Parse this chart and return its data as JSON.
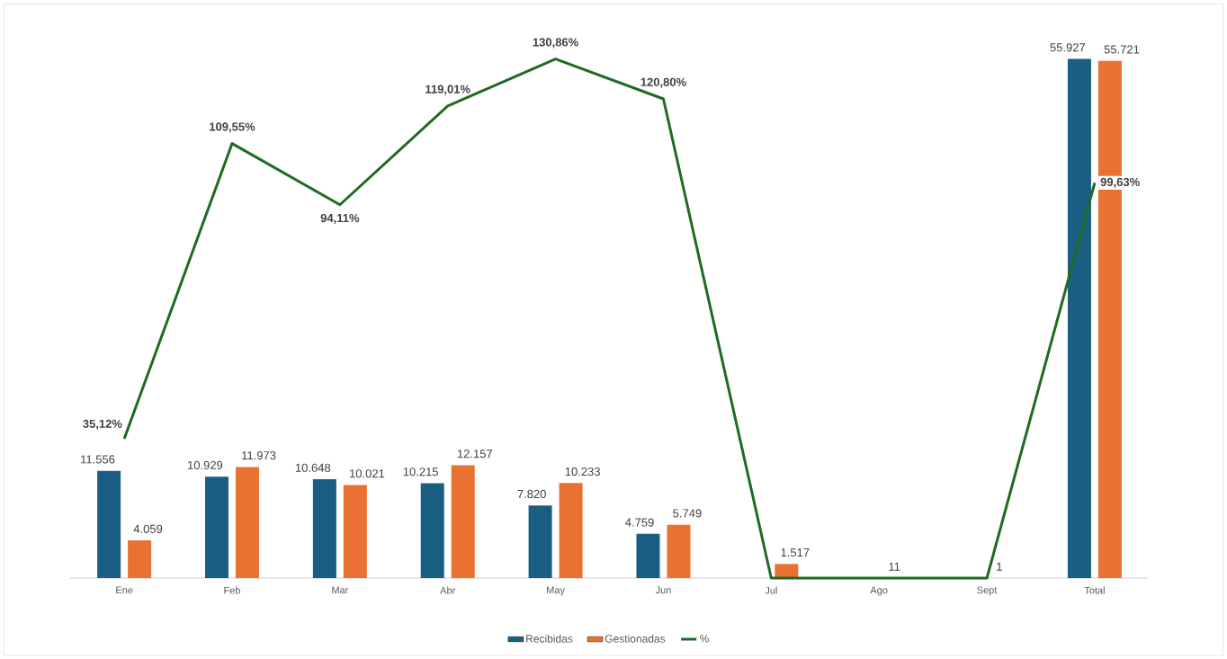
{
  "chart_data": {
    "type": "bar",
    "categories": [
      "Ene",
      "Feb",
      "Mar",
      "Abr",
      "May",
      "Jun",
      "Jul",
      "Ago",
      "Sept",
      "Total"
    ],
    "tick_labels": "x",
    "legend": "bottom",
    "series": [
      {
        "name": "Recibidas",
        "color": "#1b5e83",
        "values": [
          11556,
          10929,
          10648,
          10215,
          7820,
          4759,
          null,
          null,
          null,
          55927
        ],
        "value_labels": [
          "11.556",
          "10.929",
          "10.648",
          "10.215",
          "7.820",
          "4.759",
          null,
          null,
          null,
          "55.927"
        ]
      },
      {
        "name": "Gestionadas",
        "color": "#e97132",
        "values": [
          4059,
          11973,
          10021,
          12157,
          10233,
          5749,
          1517,
          11,
          1,
          55721
        ],
        "value_labels": [
          "4.059",
          "11.973",
          "10.021",
          "12.157",
          "10.233",
          "5.749",
          "1.517",
          "11",
          "1",
          "55.721"
        ]
      },
      {
        "name": "%",
        "type": "line",
        "axis": "y2",
        "color": "#1e6b24",
        "values": [
          35.12,
          109.55,
          94.11,
          119.01,
          130.86,
          120.8,
          0,
          0,
          0,
          99.63
        ],
        "value_labels": [
          "35,12%",
          "109,55%",
          "94,11%",
          "119,01%",
          "130,86%",
          "120,80%",
          null,
          null,
          null,
          "99,63%"
        ]
      }
    ]
  }
}
